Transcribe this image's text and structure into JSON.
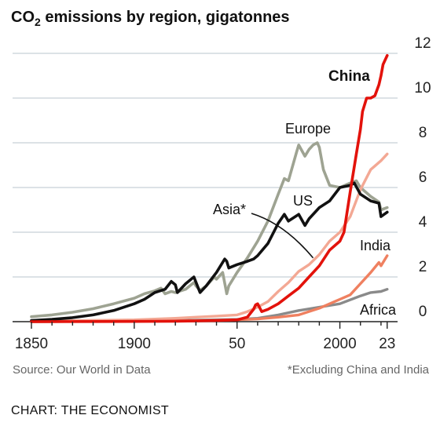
{
  "chart_data": {
    "type": "line",
    "title_prefix": "CO",
    "title_sub": "2",
    "title_rest": " emissions by region, gigatonnes",
    "x_ticks": [
      "1850",
      "1900",
      "50",
      "2000",
      "23"
    ],
    "y_ticks": [
      "0",
      "2",
      "4",
      "6",
      "8",
      "10",
      "12"
    ],
    "xlim": [
      1850,
      2025
    ],
    "ylim": [
      0,
      12
    ],
    "grid": true,
    "y_axis_side": "right",
    "series": [
      {
        "name": "Europe",
        "color": "#9ea392",
        "x": [
          1850,
          1860,
          1870,
          1880,
          1890,
          1900,
          1905,
          1910,
          1913,
          1915,
          1918,
          1920,
          1925,
          1929,
          1930,
          1932,
          1935,
          1939,
          1940,
          1943,
          1945,
          1946,
          1950,
          1955,
          1960,
          1965,
          1970,
          1973,
          1975,
          1979,
          1980,
          1983,
          1985,
          1987,
          1989,
          1990,
          1992,
          1995,
          2000,
          2005,
          2008,
          2010,
          2015,
          2019,
          2020,
          2023
        ],
        "y": [
          0.22,
          0.3,
          0.42,
          0.58,
          0.8,
          1.05,
          1.25,
          1.38,
          1.5,
          1.25,
          1.35,
          1.3,
          1.45,
          1.75,
          1.6,
          1.4,
          1.6,
          2.0,
          1.9,
          2.2,
          1.25,
          1.6,
          2.2,
          2.85,
          3.6,
          4.5,
          5.7,
          6.4,
          6.3,
          7.6,
          7.9,
          7.4,
          7.7,
          7.9,
          8.0,
          7.8,
          6.8,
          6.1,
          6.0,
          6.2,
          6.3,
          6.0,
          5.6,
          5.35,
          5.0,
          5.1
        ]
      },
      {
        "name": "US",
        "color": "#111111",
        "x": [
          1850,
          1860,
          1870,
          1880,
          1890,
          1900,
          1905,
          1910,
          1915,
          1918,
          1920,
          1921,
          1925,
          1929,
          1932,
          1935,
          1940,
          1944,
          1945,
          1946,
          1950,
          1955,
          1958,
          1960,
          1965,
          1970,
          1973,
          1975,
          1980,
          1983,
          1985,
          1990,
          1995,
          2000,
          2005,
          2007,
          2010,
          2015,
          2019,
          2020,
          2023
        ],
        "y": [
          0.05,
          0.1,
          0.18,
          0.3,
          0.5,
          0.8,
          1.0,
          1.3,
          1.45,
          1.8,
          1.65,
          1.3,
          1.7,
          2.0,
          1.3,
          1.6,
          2.2,
          2.8,
          2.7,
          2.4,
          2.55,
          2.7,
          2.8,
          2.95,
          3.5,
          4.4,
          4.8,
          4.5,
          4.8,
          4.3,
          4.6,
          5.1,
          5.4,
          6.0,
          6.1,
          6.2,
          5.7,
          5.4,
          5.3,
          4.7,
          4.9
        ]
      },
      {
        "name": "Asia*",
        "color": "#f3a894",
        "x": [
          1850,
          1900,
          1920,
          1940,
          1950,
          1955,
          1960,
          1965,
          1970,
          1975,
          1980,
          1985,
          1990,
          1995,
          2000,
          2005,
          2010,
          2015,
          2020,
          2023
        ],
        "y": [
          0.02,
          0.08,
          0.15,
          0.25,
          0.3,
          0.45,
          0.65,
          0.9,
          1.35,
          1.75,
          2.25,
          2.55,
          3.0,
          3.6,
          4.0,
          4.7,
          5.9,
          6.8,
          7.2,
          7.5
        ]
      },
      {
        "name": "China",
        "color": "#e3120b",
        "x": [
          1850,
          1900,
          1920,
          1940,
          1950,
          1955,
          1958,
          1959,
          1960,
          1962,
          1965,
          1970,
          1975,
          1980,
          1985,
          1990,
          1995,
          2000,
          2002,
          2005,
          2008,
          2010,
          2011,
          2013,
          2015,
          2017,
          2019,
          2020,
          2021,
          2023
        ],
        "y": [
          0.0,
          0.01,
          0.02,
          0.05,
          0.08,
          0.2,
          0.55,
          0.75,
          0.8,
          0.45,
          0.55,
          0.8,
          1.15,
          1.5,
          2.0,
          2.5,
          3.2,
          3.6,
          4.0,
          5.8,
          7.5,
          8.6,
          9.4,
          10.0,
          10.0,
          10.1,
          10.6,
          11.0,
          11.5,
          11.9
        ]
      },
      {
        "name": "India",
        "color": "#ef8060",
        "x": [
          1850,
          1900,
          1940,
          1950,
          1960,
          1970,
          1980,
          1990,
          2000,
          2005,
          2010,
          2015,
          2019,
          2020,
          2023
        ],
        "y": [
          0.0,
          0.02,
          0.06,
          0.08,
          0.12,
          0.2,
          0.3,
          0.6,
          1.0,
          1.2,
          1.7,
          2.2,
          2.65,
          2.5,
          2.95
        ]
      },
      {
        "name": "Africa",
        "color": "#8a8a8a",
        "x": [
          1850,
          1900,
          1950,
          1960,
          1970,
          1980,
          1990,
          2000,
          2010,
          2015,
          2020,
          2023
        ],
        "y": [
          0.0,
          0.02,
          0.1,
          0.15,
          0.3,
          0.5,
          0.65,
          0.8,
          1.15,
          1.3,
          1.35,
          1.45
        ]
      }
    ],
    "annotation_pointer": {
      "label": "Asia*",
      "x": 1987,
      "y": 2.85
    }
  },
  "footer": {
    "source": "Source: Our World in Data",
    "footnote": "*Excluding China and India",
    "credit": "CHART: THE ECONOMIST"
  }
}
